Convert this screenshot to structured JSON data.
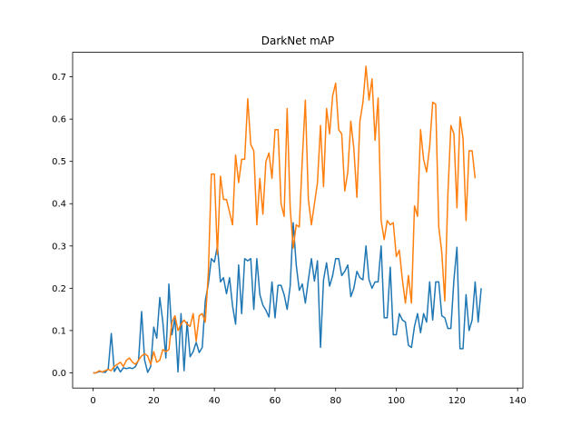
{
  "chart_data": {
    "type": "line",
    "title": "DarkNet mAP",
    "xlabel": "",
    "ylabel": "",
    "xlim": [
      -6.75,
      141.75
    ],
    "ylim": [
      -0.036,
      0.758
    ],
    "xticks": [
      0,
      20,
      40,
      60,
      80,
      100,
      120,
      140
    ],
    "yticks": [
      0.0,
      0.1,
      0.2,
      0.3,
      0.4,
      0.5,
      0.6,
      0.7
    ],
    "xtick_labels": [
      "0",
      "20",
      "40",
      "60",
      "80",
      "100",
      "120",
      "140"
    ],
    "ytick_labels": [
      "0.0",
      "0.1",
      "0.2",
      "0.3",
      "0.4",
      "0.5",
      "0.6",
      "0.7"
    ],
    "grid": false,
    "legend": "none",
    "series": [
      {
        "color": "#1f77b4",
        "values": [
          0.0,
          0.0,
          0.003,
          0.002,
          0.001,
          0.01,
          0.093,
          0.003,
          0.015,
          0.002,
          0.012,
          0.01,
          0.012,
          0.01,
          0.015,
          0.03,
          0.145,
          0.03,
          0.001,
          0.015,
          0.108,
          0.082,
          0.178,
          0.12,
          0.035,
          0.21,
          0.09,
          0.13,
          0.002,
          0.14,
          0.005,
          0.12,
          0.038,
          0.05,
          0.072,
          0.048,
          0.06,
          0.17,
          0.21,
          0.27,
          0.262,
          0.3,
          0.215,
          0.225,
          0.187,
          0.225,
          0.158,
          0.115,
          0.255,
          0.14,
          0.27,
          0.265,
          0.27,
          0.15,
          0.27,
          0.185,
          0.16,
          0.148,
          0.132,
          0.215,
          0.13,
          0.207,
          0.207,
          0.185,
          0.15,
          0.205,
          0.355,
          0.255,
          0.195,
          0.21,
          0.165,
          0.22,
          0.27,
          0.217,
          0.265,
          0.06,
          0.22,
          0.26,
          0.205,
          0.23,
          0.27,
          0.27,
          0.23,
          0.24,
          0.255,
          0.18,
          0.2,
          0.24,
          0.225,
          0.22,
          0.3,
          0.22,
          0.2,
          0.215,
          0.215,
          0.3,
          0.13,
          0.13,
          0.25,
          0.09,
          0.09,
          0.14,
          0.125,
          0.12,
          0.065,
          0.06,
          0.11,
          0.14,
          0.095,
          0.14,
          0.12,
          0.215,
          0.125,
          0.215,
          0.215,
          0.135,
          0.13,
          0.105,
          0.105,
          0.22,
          0.297,
          0.057,
          0.057,
          0.185,
          0.1,
          0.125,
          0.215,
          0.12,
          0.2
        ]
      },
      {
        "color": "#ff7f0e",
        "values": [
          0.0,
          0.0,
          0.005,
          0.002,
          0.005,
          0.008,
          0.005,
          0.015,
          0.02,
          0.025,
          0.015,
          0.03,
          0.035,
          0.025,
          0.02,
          0.03,
          0.04,
          0.045,
          0.04,
          0.02,
          0.05,
          0.025,
          0.03,
          0.055,
          0.05,
          0.055,
          0.12,
          0.135,
          0.1,
          0.115,
          0.125,
          0.115,
          0.11,
          0.14,
          0.075,
          0.135,
          0.14,
          0.12,
          0.235,
          0.47,
          0.47,
          0.28,
          0.465,
          0.41,
          0.41,
          0.38,
          0.35,
          0.515,
          0.45,
          0.505,
          0.505,
          0.648,
          0.54,
          0.525,
          0.35,
          0.46,
          0.375,
          0.5,
          0.52,
          0.46,
          0.575,
          0.575,
          0.4,
          0.37,
          0.625,
          0.39,
          0.295,
          0.35,
          0.345,
          0.505,
          0.645,
          0.41,
          0.35,
          0.4,
          0.45,
          0.585,
          0.44,
          0.625,
          0.565,
          0.655,
          0.685,
          0.575,
          0.565,
          0.43,
          0.475,
          0.595,
          0.53,
          0.415,
          0.595,
          0.64,
          0.725,
          0.645,
          0.695,
          0.55,
          0.65,
          0.36,
          0.315,
          0.36,
          0.35,
          0.355,
          0.275,
          0.29,
          0.22,
          0.165,
          0.23,
          0.165,
          0.395,
          0.37,
          0.575,
          0.505,
          0.475,
          0.535,
          0.64,
          0.635,
          0.345,
          0.285,
          0.17,
          0.42,
          0.585,
          0.565,
          0.39,
          0.605,
          0.555,
          0.36,
          0.525,
          0.525,
          0.46
        ]
      }
    ]
  }
}
